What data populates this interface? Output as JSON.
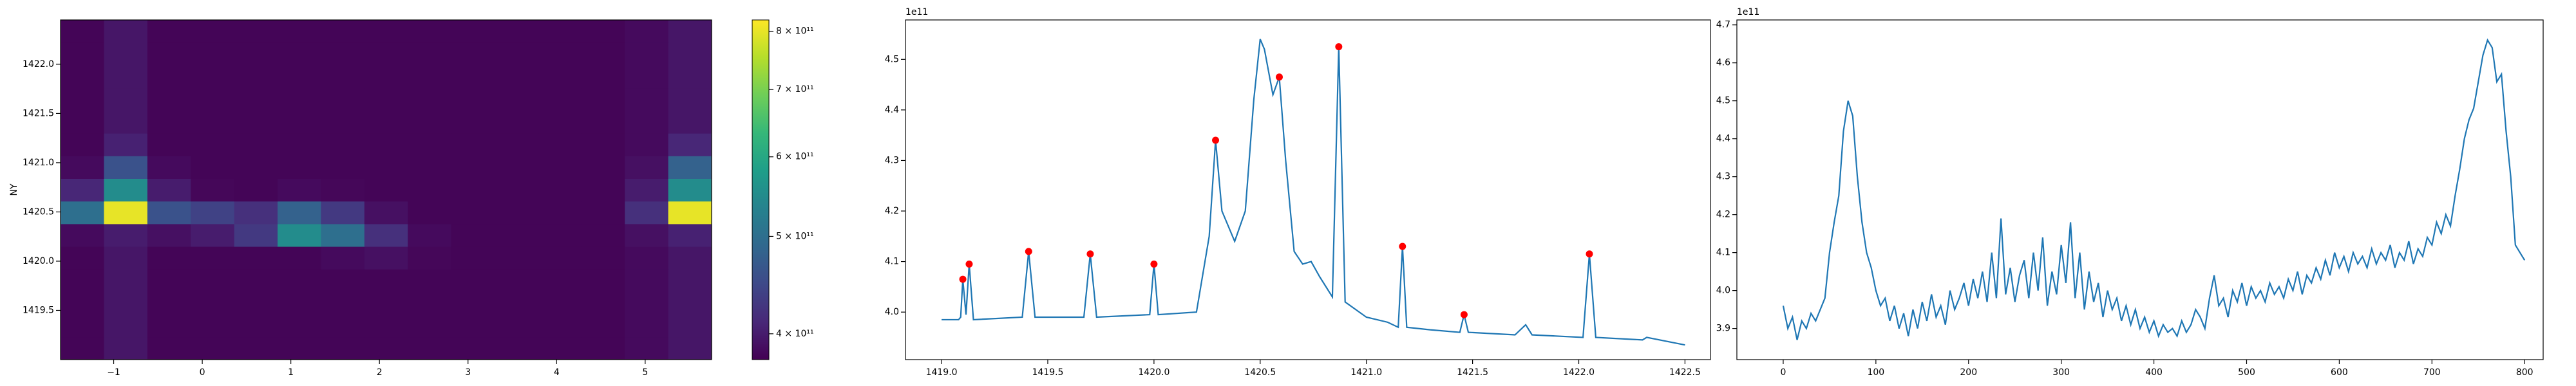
{
  "chart_data": [
    {
      "type": "heatmap",
      "ylabel": "NY",
      "colormap": "viridis",
      "xedges": [
        -1.6,
        -1.11,
        -0.62,
        -0.13,
        0.36,
        0.85,
        1.34,
        1.83,
        2.32,
        2.81,
        3.3,
        3.79,
        4.28,
        4.77,
        5.26,
        5.75
      ],
      "yedges": [
        1419.0,
        1419.23,
        1419.46,
        1419.69,
        1419.92,
        1420.15,
        1420.38,
        1420.61,
        1420.84,
        1421.07,
        1421.3,
        1421.53,
        1421.76,
        1421.99,
        1422.22,
        1422.45
      ],
      "z": [
        [
          380000000000.0,
          395000000000.0,
          380000000000.0,
          380000000000.0,
          380000000000.0,
          380000000000.0,
          380000000000.0,
          380000000000.0,
          380000000000.0,
          380000000000.0,
          380000000000.0,
          380000000000.0,
          380000000000.0,
          385000000000.0,
          395000000000.0
        ],
        [
          380000000000.0,
          395000000000.0,
          380000000000.0,
          380000000000.0,
          380000000000.0,
          380000000000.0,
          380000000000.0,
          380000000000.0,
          380000000000.0,
          380000000000.0,
          380000000000.0,
          380000000000.0,
          380000000000.0,
          385000000000.0,
          395000000000.0
        ],
        [
          380000000000.0,
          395000000000.0,
          380000000000.0,
          380000000000.0,
          380000000000.0,
          380000000000.0,
          380000000000.0,
          380000000000.0,
          380000000000.0,
          380000000000.0,
          380000000000.0,
          380000000000.0,
          380000000000.0,
          385000000000.0,
          395000000000.0
        ],
        [
          380000000000.0,
          395000000000.0,
          380000000000.0,
          380000000000.0,
          380000000000.0,
          380000000000.0,
          380000000000.0,
          380000000000.0,
          380000000000.0,
          380000000000.0,
          380000000000.0,
          380000000000.0,
          380000000000.0,
          385000000000.0,
          395000000000.0
        ],
        [
          380000000000.0,
          395000000000.0,
          380000000000.0,
          380000000000.0,
          380000000000.0,
          380000000000.0,
          385000000000.0,
          390000000000.0,
          382000000000.0,
          380000000000.0,
          380000000000.0,
          380000000000.0,
          380000000000.0,
          385000000000.0,
          395000000000.0
        ],
        [
          385000000000.0,
          400000000000.0,
          390000000000.0,
          400000000000.0,
          430000000000.0,
          550000000000.0,
          500000000000.0,
          420000000000.0,
          385000000000.0,
          380000000000.0,
          380000000000.0,
          380000000000.0,
          380000000000.0,
          390000000000.0,
          405000000000.0
        ],
        [
          500000000000.0,
          800000000000.0,
          460000000000.0,
          440000000000.0,
          420000000000.0,
          480000000000.0,
          430000000000.0,
          390000000000.0,
          380000000000.0,
          380000000000.0,
          380000000000.0,
          380000000000.0,
          380000000000.0,
          420000000000.0,
          800000000000.0
        ],
        [
          410000000000.0,
          550000000000.0,
          400000000000.0,
          382000000000.0,
          380000000000.0,
          385000000000.0,
          382000000000.0,
          380000000000.0,
          380000000000.0,
          380000000000.0,
          380000000000.0,
          380000000000.0,
          380000000000.0,
          400000000000.0,
          550000000000.0
        ],
        [
          385000000000.0,
          460000000000.0,
          385000000000.0,
          380000000000.0,
          380000000000.0,
          380000000000.0,
          380000000000.0,
          380000000000.0,
          380000000000.0,
          380000000000.0,
          380000000000.0,
          380000000000.0,
          380000000000.0,
          390000000000.0,
          480000000000.0
        ],
        [
          380000000000.0,
          405000000000.0,
          380000000000.0,
          380000000000.0,
          380000000000.0,
          380000000000.0,
          380000000000.0,
          380000000000.0,
          380000000000.0,
          380000000000.0,
          380000000000.0,
          380000000000.0,
          380000000000.0,
          385000000000.0,
          410000000000.0
        ],
        [
          380000000000.0,
          395000000000.0,
          380000000000.0,
          380000000000.0,
          380000000000.0,
          380000000000.0,
          380000000000.0,
          380000000000.0,
          380000000000.0,
          380000000000.0,
          380000000000.0,
          380000000000.0,
          380000000000.0,
          385000000000.0,
          395000000000.0
        ],
        [
          380000000000.0,
          395000000000.0,
          380000000000.0,
          380000000000.0,
          380000000000.0,
          380000000000.0,
          380000000000.0,
          380000000000.0,
          380000000000.0,
          380000000000.0,
          380000000000.0,
          380000000000.0,
          380000000000.0,
          385000000000.0,
          395000000000.0
        ],
        [
          380000000000.0,
          395000000000.0,
          380000000000.0,
          380000000000.0,
          380000000000.0,
          380000000000.0,
          380000000000.0,
          380000000000.0,
          380000000000.0,
          380000000000.0,
          380000000000.0,
          380000000000.0,
          380000000000.0,
          385000000000.0,
          395000000000.0
        ],
        [
          380000000000.0,
          395000000000.0,
          380000000000.0,
          380000000000.0,
          380000000000.0,
          380000000000.0,
          380000000000.0,
          380000000000.0,
          380000000000.0,
          380000000000.0,
          380000000000.0,
          380000000000.0,
          380000000000.0,
          385000000000.0,
          395000000000.0
        ],
        [
          380000000000.0,
          395000000000.0,
          380000000000.0,
          380000000000.0,
          380000000000.0,
          380000000000.0,
          380000000000.0,
          380000000000.0,
          380000000000.0,
          380000000000.0,
          380000000000.0,
          380000000000.0,
          380000000000.0,
          385000000000.0,
          395000000000.0
        ]
      ],
      "xlim": [
        -1.6,
        5.75
      ],
      "ylim": [
        1419.0,
        1422.45
      ],
      "xticks": [
        {
          "value": -1,
          "label": "−1"
        },
        0,
        1,
        2,
        3,
        4,
        5
      ],
      "yticks": [
        1419.5,
        {
          "value": 1420,
          "label": "1420.0"
        },
        1420.5,
        {
          "value": 1421,
          "label": "1421.0"
        },
        1421.5,
        {
          "value": 1422,
          "label": "1422.0"
        }
      ],
      "colorbar": {
        "scale": "log",
        "lim": [
          377000000000.0,
          821000000000.0
        ],
        "ticks": [
          {
            "value": 400000000000.0,
            "label": "4 × 10¹¹"
          },
          {
            "value": 500000000000.0,
            "label": "5 × 10¹¹"
          },
          {
            "value": 600000000000.0,
            "label": "6 × 10¹¹"
          },
          {
            "value": 700000000000.0,
            "label": "7 × 10¹¹"
          },
          {
            "value": 800000000000.0,
            "label": "8 × 10¹¹"
          }
        ]
      }
    },
    {
      "type": "line",
      "offset_text": "1e11",
      "series": [
        {
          "type": "line",
          "color": "#1f77b4",
          "x": [
            1419.0,
            1419.08,
            1419.09,
            1419.1,
            1419.115,
            1419.13,
            1419.15,
            1419.38,
            1419.41,
            1419.44,
            1419.67,
            1419.7,
            1419.73,
            1419.98,
            1420.0,
            1420.02,
            1420.2,
            1420.26,
            1420.29,
            1420.32,
            1420.38,
            1420.43,
            1420.47,
            1420.5,
            1420.52,
            1420.56,
            1420.59,
            1420.62,
            1420.66,
            1420.7,
            1420.74,
            1420.78,
            1420.84,
            1420.87,
            1420.9,
            1421.0,
            1421.1,
            1421.15,
            1421.17,
            1421.19,
            1421.3,
            1421.44,
            1421.46,
            1421.48,
            1421.7,
            1421.75,
            1421.78,
            1422.02,
            1422.05,
            1422.08,
            1422.3,
            1422.32,
            1422.5
          ],
          "values": [
            3.985,
            3.985,
            3.99,
            4.065,
            3.995,
            4.095,
            3.985,
            3.99,
            4.12,
            3.99,
            3.99,
            4.115,
            3.99,
            3.995,
            4.095,
            3.995,
            4.0,
            4.15,
            4.34,
            4.2,
            4.14,
            4.2,
            4.42,
            4.54,
            4.52,
            4.43,
            4.465,
            4.3,
            4.12,
            4.095,
            4.1,
            4.07,
            4.03,
            4.525,
            4.02,
            3.99,
            3.98,
            3.97,
            4.13,
            3.97,
            3.965,
            3.96,
            3.995,
            3.96,
            3.955,
            3.975,
            3.955,
            3.95,
            4.115,
            3.95,
            3.945,
            3.95,
            3.935
          ]
        },
        {
          "type": "scatter",
          "color": "#ff0000",
          "x": [
            1419.1,
            1419.13,
            1419.41,
            1419.7,
            1420.0,
            1420.29,
            1420.59,
            1420.87,
            1421.17,
            1421.46,
            1422.05
          ],
          "values": [
            4.065,
            4.095,
            4.12,
            4.115,
            4.095,
            4.34,
            4.465,
            4.525,
            4.13,
            3.995,
            4.115
          ]
        }
      ],
      "xlim": [
        1418.83,
        1422.62
      ],
      "ylim": [
        3.906,
        4.578
      ],
      "xticks": [
        {
          "value": 1419,
          "label": "1419.0"
        },
        1419.5,
        {
          "value": 1420,
          "label": "1420.0"
        },
        1420.5,
        {
          "value": 1421,
          "label": "1421.0"
        },
        1421.5,
        {
          "value": 1422,
          "label": "1422.0"
        },
        1422.5
      ],
      "yticks": [
        {
          "value": 4,
          "label": "4.0"
        },
        4.1,
        4.2,
        4.3,
        4.4,
        4.5
      ]
    },
    {
      "type": "line",
      "offset_text": "1e11",
      "series": [
        {
          "type": "line",
          "color": "#1f77b4",
          "x": [
            0,
            5,
            10,
            15,
            20,
            25,
            30,
            35,
            40,
            45,
            50,
            55,
            60,
            65,
            70,
            75,
            80,
            85,
            90,
            95,
            100,
            105,
            110,
            115,
            120,
            125,
            130,
            135,
            140,
            145,
            150,
            155,
            160,
            165,
            170,
            175,
            180,
            185,
            190,
            195,
            200,
            205,
            210,
            215,
            220,
            225,
            230,
            235,
            240,
            245,
            250,
            255,
            260,
            265,
            270,
            275,
            280,
            285,
            290,
            295,
            300,
            305,
            310,
            315,
            320,
            325,
            330,
            335,
            340,
            345,
            350,
            355,
            360,
            365,
            370,
            375,
            380,
            385,
            390,
            395,
            400,
            405,
            410,
            415,
            420,
            425,
            430,
            435,
            440,
            445,
            450,
            455,
            460,
            465,
            470,
            475,
            480,
            485,
            490,
            495,
            500,
            505,
            510,
            515,
            520,
            525,
            530,
            535,
            540,
            545,
            550,
            555,
            560,
            565,
            570,
            575,
            580,
            585,
            590,
            595,
            600,
            605,
            610,
            615,
            620,
            625,
            630,
            635,
            640,
            645,
            650,
            655,
            660,
            665,
            670,
            675,
            680,
            685,
            690,
            695,
            700,
            705,
            710,
            715,
            720,
            725,
            730,
            735,
            740,
            745,
            750,
            755,
            760,
            765,
            770,
            775,
            780,
            785,
            790,
            795,
            800
          ],
          "values": [
            3.96,
            3.9,
            3.93,
            3.87,
            3.92,
            3.9,
            3.94,
            3.92,
            3.95,
            3.98,
            4.1,
            4.18,
            4.25,
            4.42,
            4.5,
            4.46,
            4.3,
            4.18,
            4.1,
            4.06,
            4.0,
            3.96,
            3.98,
            3.92,
            3.96,
            3.9,
            3.94,
            3.88,
            3.95,
            3.9,
            3.97,
            3.92,
            3.99,
            3.93,
            3.96,
            3.91,
            4.0,
            3.95,
            3.98,
            4.02,
            3.96,
            4.03,
            3.98,
            4.05,
            3.97,
            4.1,
            3.98,
            4.19,
            3.99,
            4.06,
            3.97,
            4.04,
            4.08,
            3.98,
            4.1,
            4.0,
            4.14,
            3.96,
            4.05,
            3.99,
            4.12,
            4.02,
            4.18,
            3.98,
            4.1,
            3.95,
            4.05,
            3.97,
            4.02,
            3.93,
            4.0,
            3.95,
            3.98,
            3.92,
            3.96,
            3.91,
            3.95,
            3.9,
            3.93,
            3.89,
            3.92,
            3.88,
            3.91,
            3.89,
            3.9,
            3.88,
            3.92,
            3.89,
            3.91,
            3.95,
            3.93,
            3.9,
            3.98,
            4.04,
            3.96,
            3.98,
            3.93,
            4.0,
            3.97,
            4.02,
            3.96,
            4.01,
            3.98,
            4.0,
            3.97,
            4.02,
            3.99,
            4.01,
            3.98,
            4.03,
            4.0,
            4.05,
            3.99,
            4.04,
            4.02,
            4.06,
            4.03,
            4.08,
            4.04,
            4.1,
            4.06,
            4.09,
            4.05,
            4.1,
            4.07,
            4.09,
            4.06,
            4.11,
            4.07,
            4.1,
            4.08,
            4.12,
            4.06,
            4.1,
            4.08,
            4.13,
            4.07,
            4.11,
            4.09,
            4.14,
            4.12,
            4.18,
            4.15,
            4.2,
            4.17,
            4.25,
            4.32,
            4.4,
            4.45,
            4.48,
            4.55,
            4.62,
            4.66,
            4.64,
            4.55,
            4.57,
            4.42,
            4.3,
            4.12,
            4.1,
            4.08
          ]
        }
      ],
      "xlim": [
        -50,
        820
      ],
      "ylim": [
        3.818,
        4.713
      ],
      "xticks": [
        0,
        100,
        200,
        300,
        400,
        500,
        600,
        700,
        800
      ],
      "yticks": [
        3.9,
        {
          "value": 4,
          "label": "4.0"
        },
        4.1,
        4.2,
        4.3,
        4.4,
        4.5,
        4.6,
        4.7
      ]
    }
  ]
}
